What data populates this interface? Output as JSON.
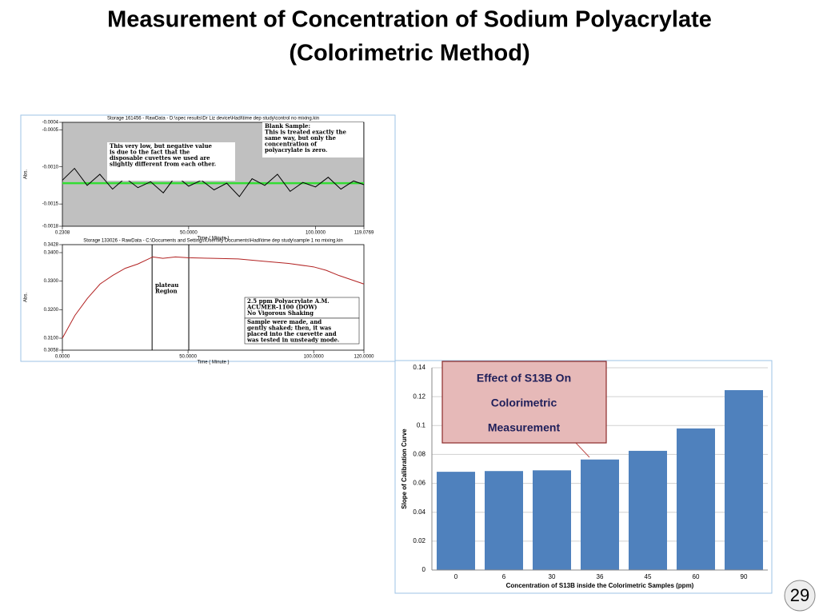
{
  "slide": {
    "title": [
      "Measurement of Concentration of Sodium Polyacrylate",
      "(Colorimetric Method)"
    ],
    "page_number": "29"
  },
  "chart_data": [
    {
      "type": "line",
      "header": "Storage 161456 - RawData - D:\\spec results\\Dr Liz device\\Hadi\\time dep study\\control no mixing.kin",
      "xlabel": "Time ( Minute )",
      "ylabel": "Abs.",
      "xlim": [
        0.2308,
        119.0769
      ],
      "xticks": [
        {
          "value": 0.2308,
          "label": "0.2308"
        },
        {
          "value": 50,
          "label": "50.0000"
        },
        {
          "value": 100,
          "label": "100.0000"
        },
        {
          "value": 119.0769,
          "label": "119.0769"
        }
      ],
      "ylim": [
        -0.0018,
        -0.0004
      ],
      "yticks": [
        {
          "value": -0.0004,
          "label": "-0.0004"
        },
        {
          "value": -0.0005,
          "label": "-0.0005"
        },
        {
          "value": -0.001,
          "label": "-0.0010"
        },
        {
          "value": -0.0015,
          "label": "-0.0015"
        },
        {
          "value": -0.0018,
          "label": "-0.0018"
        }
      ],
      "x": [
        0.2308,
        5,
        10,
        15,
        20,
        25,
        30,
        35,
        40,
        45,
        50,
        55,
        60,
        65,
        70,
        75,
        80,
        85,
        90,
        95,
        100,
        105,
        110,
        115,
        119.0769
      ],
      "series": [
        {
          "color": "#000000",
          "values": [
            -0.00118,
            -0.00102,
            -0.00125,
            -0.0011,
            -0.0013,
            -0.00115,
            -0.00128,
            -0.0012,
            -0.00135,
            -0.00112,
            -0.00126,
            -0.00118,
            -0.00131,
            -0.00122,
            -0.0014,
            -0.00116,
            -0.00125,
            -0.0011,
            -0.00133,
            -0.00121,
            -0.00127,
            -0.00114,
            -0.0013,
            -0.00119,
            -0.00124
          ]
        }
      ],
      "reference_line": {
        "value": -0.00122,
        "color": "#33dd33"
      },
      "annotations": [
        [
          "This very low, but negative value",
          "is due to the fact that the",
          "disposable cuvettes we used are",
          "slightly different from each other."
        ],
        [
          "Blank Sample:",
          "This is treated exactly the",
          "same way, but only the",
          "concentration of",
          "polyacrylate is zero."
        ]
      ]
    },
    {
      "type": "line",
      "header": "Storage 133026 - RawData - C:\\Documents and Settings\\User\\My Documents\\Hadi\\time dep study\\sample 1 no mixing.kin",
      "xlabel": "Time ( Minute )",
      "ylabel": "Abs.",
      "xlim": [
        0,
        120
      ],
      "xticks": [
        {
          "value": 0,
          "label": "0.0000"
        },
        {
          "value": 50,
          "label": "50.0000"
        },
        {
          "value": 100,
          "label": "100.0000"
        },
        {
          "value": 120,
          "label": "120.0000"
        }
      ],
      "ylim": [
        0.3058,
        0.3428
      ],
      "yticks": [
        {
          "value": 0.3058,
          "label": "0.3058"
        },
        {
          "value": 0.31,
          "label": "0.3100"
        },
        {
          "value": 0.32,
          "label": "0.3200"
        },
        {
          "value": 0.33,
          "label": "0.3300"
        },
        {
          "value": 0.34,
          "label": "0.3400"
        },
        {
          "value": 0.3428,
          "label": "0.3428"
        }
      ],
      "x": [
        0,
        5,
        10,
        15,
        20,
        25,
        30,
        36,
        40,
        45,
        50,
        60,
        70,
        80,
        90,
        100,
        105,
        110,
        120
      ],
      "series": [
        {
          "color": "#b22222",
          "values": [
            0.31,
            0.318,
            0.324,
            0.329,
            0.332,
            0.3345,
            0.336,
            0.3385,
            0.338,
            0.3385,
            0.3382,
            0.338,
            0.3378,
            0.337,
            0.3362,
            0.335,
            0.3338,
            0.332,
            0.329
          ]
        }
      ],
      "vlines": [
        35.7,
        50.3
      ],
      "annotations": [
        [
          "plateau",
          "Region"
        ],
        [
          "2.5 ppm Polyacrylate A.M.",
          "ACUMER-1100 (DOW)",
          "No Vigorous Shaking"
        ],
        [
          "Sample were made, and",
          "gently shaked; then, it was",
          "placed into the cuevette and",
          "was tested in unsteady mode."
        ]
      ]
    },
    {
      "type": "bar",
      "xlabel": "Concentration of S13B inside the Colorimetric Samples (ppm)",
      "ylabel": "Slope of Calibration Curve",
      "categories": [
        "0",
        "6",
        "30",
        "36",
        "45",
        "60",
        "90"
      ],
      "values": [
        0.068,
        0.0685,
        0.069,
        0.0765,
        0.0825,
        0.098,
        0.1245
      ],
      "color": "#4f81bd",
      "ylim": [
        0,
        0.14
      ],
      "yticks": [
        0,
        0.02,
        0.04,
        0.06,
        0.08,
        0.1,
        0.12,
        0.14
      ],
      "grid": true,
      "annotation": [
        "Effect of S13B On",
        "Colorimetric",
        "Measurement"
      ]
    }
  ]
}
